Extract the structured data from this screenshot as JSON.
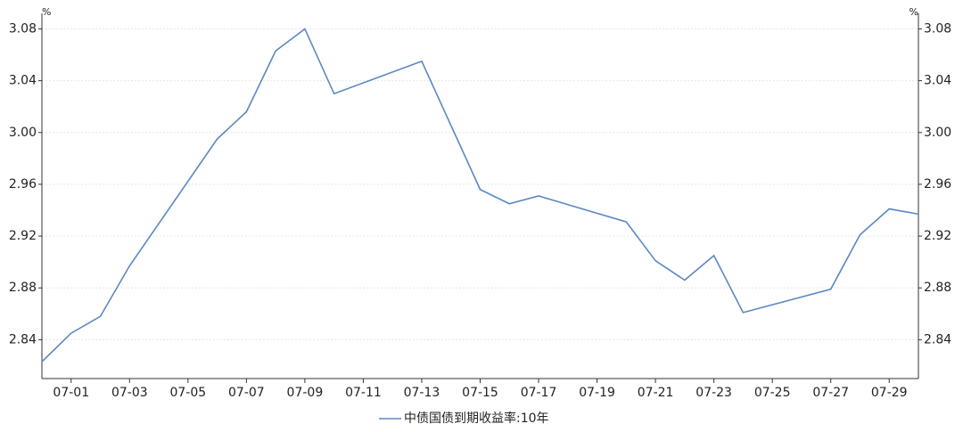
{
  "chart_data": {
    "type": "line",
    "y_unit": "%",
    "x": [
      0,
      1,
      2,
      3,
      6,
      7,
      8,
      9,
      10,
      13,
      15,
      16,
      17,
      20,
      21,
      22,
      23,
      24,
      27,
      28,
      29,
      30
    ],
    "xlim": [
      0,
      30
    ],
    "xticks": [
      {
        "value": 1,
        "label": "07-01"
      },
      {
        "value": 3,
        "label": "07-03"
      },
      {
        "value": 5,
        "label": "07-05"
      },
      {
        "value": 7,
        "label": "07-07"
      },
      {
        "value": 9,
        "label": "07-09"
      },
      {
        "value": 11,
        "label": "07-11"
      },
      {
        "value": 13,
        "label": "07-13"
      },
      {
        "value": 15,
        "label": "07-15"
      },
      {
        "value": 17,
        "label": "07-17"
      },
      {
        "value": 19,
        "label": "07-19"
      },
      {
        "value": 21,
        "label": "07-21"
      },
      {
        "value": 23,
        "label": "07-23"
      },
      {
        "value": 25,
        "label": "07-25"
      },
      {
        "value": 27,
        "label": "07-27"
      },
      {
        "value": 29,
        "label": "07-29"
      }
    ],
    "ylim": [
      2.81,
      3.092
    ],
    "yticks": [
      2.84,
      2.88,
      2.92,
      2.96,
      {
        "value": 3.0,
        "label": "3.00"
      },
      3.04,
      3.08
    ],
    "grid": true,
    "series": [
      {
        "name": "中债国债到期收益率:10年",
        "color": "#5b87c4",
        "values": [
          2.823,
          2.845,
          2.858,
          2.897,
          2.995,
          3.016,
          3.063,
          3.08,
          3.03,
          3.055,
          2.956,
          2.945,
          2.951,
          2.931,
          2.901,
          2.886,
          2.905,
          2.861,
          2.879,
          2.921,
          2.941,
          2.937
        ]
      }
    ]
  }
}
